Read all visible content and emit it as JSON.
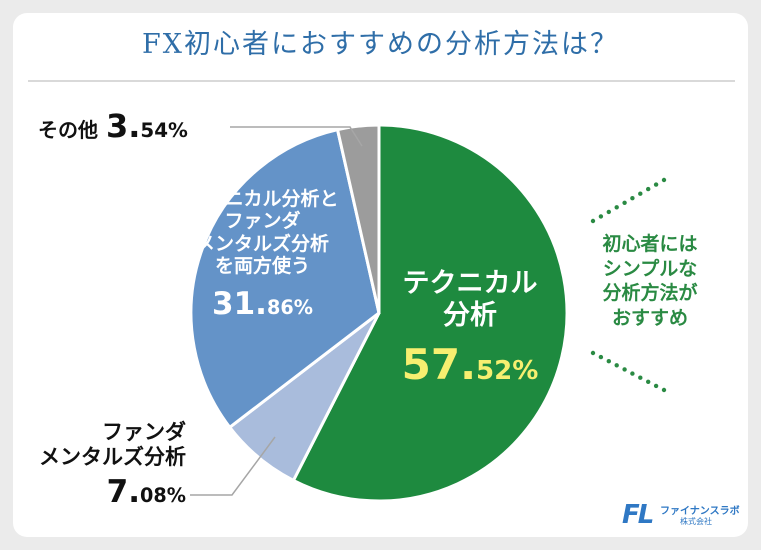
{
  "title": "FX初心者におすすめの分析方法は？",
  "chart_data": {
    "type": "pie",
    "title": "FX初心者におすすめの分析方法は？",
    "slices": [
      {
        "label": "テクニカル分析",
        "value": 57.52,
        "color": "#1e8a3f"
      },
      {
        "label": "ファンダメンタルズ分析",
        "value": 7.08,
        "color": "#a9bcdc"
      },
      {
        "label": "テクニカル分析とファンダメンタルズ分析を両方使う",
        "value": 31.86,
        "color": "#6493c8"
      },
      {
        "label": "その他",
        "value": 3.54,
        "color": "#9c9c9c"
      }
    ]
  },
  "labels": {
    "other": {
      "name": "その他",
      "pct_int": "3.",
      "pct_dec": "54%"
    },
    "both": {
      "line1": "テクニカル分析と",
      "line2": "ファンダ",
      "line3": "メンタルズ分析",
      "line4": "を両方使う",
      "pct_int": "31.",
      "pct_dec": "86%"
    },
    "fund": {
      "line1": "ファンダ",
      "line2": "メンタルズ分析",
      "pct_int": "7.",
      "pct_dec": "08%"
    },
    "tech": {
      "line1": "テクニカル",
      "line2": "分析",
      "pct_int": "57.",
      "pct_dec": "52%"
    }
  },
  "callout": {
    "line1": "初心者には",
    "line2": "シンプルな",
    "line3": "分析方法が",
    "line4": "おすすめ"
  },
  "logo": {
    "mark": "FL",
    "name": "ファイナンスラボ",
    "sub": "株式会社"
  }
}
